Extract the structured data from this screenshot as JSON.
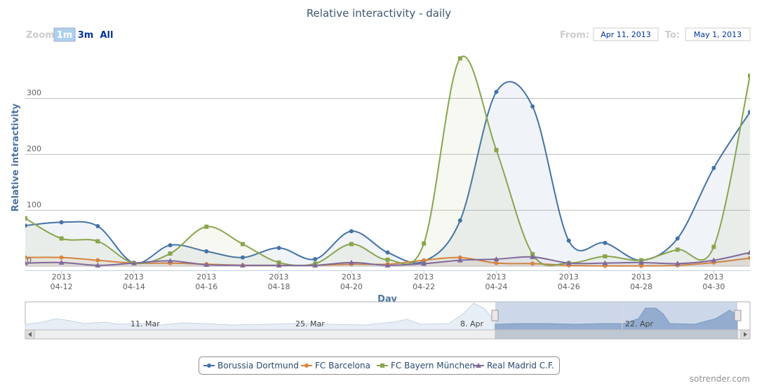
{
  "chart_data": {
    "type": "areaspline",
    "title": "Relative interactivity - daily",
    "x_label": "Day",
    "y_label": "Relative interactivity",
    "zoom": {
      "label": "Zoom",
      "buttons": [
        "1m",
        "3m",
        "All"
      ]
    },
    "range": {
      "from_label": "From:",
      "from": "Apr 11, 2013",
      "to_label": "To:",
      "to": "May 1, 2013"
    },
    "x": [
      "2013-04-11",
      "2013-04-12",
      "2013-04-13",
      "2013-04-14",
      "2013-04-15",
      "2013-04-16",
      "2013-04-17",
      "2013-04-18",
      "2013-04-19",
      "2013-04-20",
      "2013-04-21",
      "2013-04-22",
      "2013-04-23",
      "2013-04-24",
      "2013-04-25",
      "2013-04-26",
      "2013-04-27",
      "2013-04-28",
      "2013-04-29",
      "2013-04-30",
      "2013-05-01"
    ],
    "xlim": [
      "2013-04-11",
      "2013-05-01"
    ],
    "xticks": [
      {
        "value": "2013-04-12",
        "label": [
          "2013",
          "04-12"
        ]
      },
      {
        "value": "2013-04-14",
        "label": [
          "2013",
          "04-14"
        ]
      },
      {
        "value": "2013-04-16",
        "label": [
          "2013",
          "04-16"
        ]
      },
      {
        "value": "2013-04-18",
        "label": [
          "2013",
          "04-18"
        ]
      },
      {
        "value": "2013-04-20",
        "label": [
          "2013",
          "04-20"
        ]
      },
      {
        "value": "2013-04-22",
        "label": [
          "2013",
          "04-22"
        ]
      },
      {
        "value": "2013-04-24",
        "label": [
          "2013",
          "04-24"
        ]
      },
      {
        "value": "2013-04-26",
        "label": [
          "2013",
          "04-26"
        ]
      },
      {
        "value": "2013-04-28",
        "label": [
          "2013",
          "04-28"
        ]
      },
      {
        "value": "2013-04-30",
        "label": [
          "2013",
          "04-30"
        ]
      }
    ],
    "ylim": [
      -8,
      394
    ],
    "yticks": [
      0,
      100,
      200,
      300
    ],
    "grid": true,
    "series": [
      {
        "name": "Borussia Dortmund",
        "color": "#4572a7",
        "marker": "circle",
        "values": [
          72,
          78,
          71,
          5,
          37,
          26,
          15,
          32,
          12,
          62,
          24,
          8,
          81,
          311,
          285,
          45,
          41,
          10,
          49,
          175,
          275
        ]
      },
      {
        "name": "FC Barcelona",
        "color": "#db843d",
        "marker": "circle",
        "values": [
          15,
          15,
          10,
          5,
          5,
          3,
          1,
          1,
          1,
          3,
          3,
          10,
          15,
          5,
          4,
          1,
          0,
          0,
          1,
          6,
          14
        ]
      },
      {
        "name": "FC Bayern München",
        "color": "#89a54e",
        "marker": "square",
        "values": [
          85,
          49,
          44,
          5,
          22,
          70,
          39,
          6,
          4,
          39,
          11,
          40,
          371,
          207,
          21,
          5,
          17,
          10,
          29,
          34,
          340
        ]
      },
      {
        "name": "Real Madrid C.F.",
        "color": "#80699b",
        "marker": "triangle",
        "values": [
          5,
          6,
          1,
          5,
          9,
          2,
          1,
          1,
          1,
          6,
          1,
          4,
          10,
          12,
          16,
          5,
          5,
          6,
          4,
          10,
          24
        ]
      }
    ],
    "navigator_labels": [
      "11. Mar",
      "25. Mar",
      "8. Apr",
      "22. Apr"
    ],
    "credit": "sotrender.com"
  }
}
